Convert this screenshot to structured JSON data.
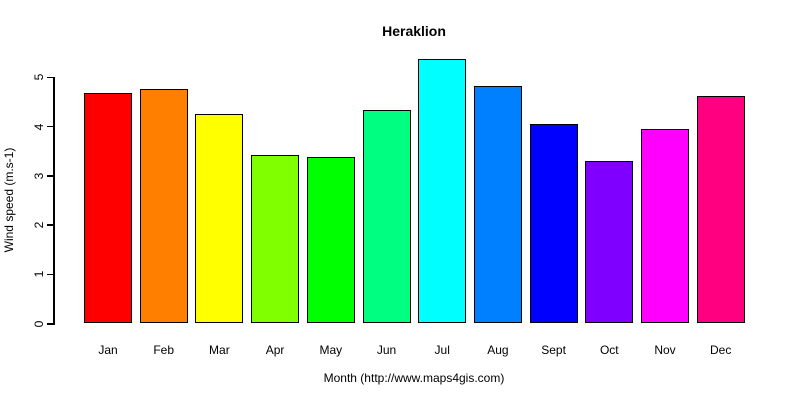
{
  "chart_data": {
    "type": "bar",
    "title": "Heraklion",
    "xlabel": "Month (http://www.maps4gis.com)",
    "ylabel": "Wind speed (m.s-1)",
    "categories": [
      "Jan",
      "Feb",
      "Mar",
      "Apr",
      "May",
      "Jun",
      "Jul",
      "Aug",
      "Sept",
      "Oct",
      "Nov",
      "Dec"
    ],
    "values": [
      4.67,
      4.74,
      4.24,
      3.41,
      3.36,
      4.32,
      5.35,
      4.81,
      4.04,
      3.28,
      3.93,
      4.61
    ],
    "bar_colors": [
      "#FF0000",
      "#FF8000",
      "#FFFF00",
      "#80FF00",
      "#00FF00",
      "#00FF80",
      "#00FFFF",
      "#0080FF",
      "#0000FF",
      "#8000FF",
      "#FF00FF",
      "#FF0080"
    ],
    "bar_border_color": "#000000",
    "y_ticks": [
      0,
      1,
      2,
      3,
      4,
      5
    ],
    "ylim": [
      0,
      5.45
    ],
    "grid": false,
    "legend_position": null,
    "text_color": "#000000",
    "background_color": "#FFFFFF"
  }
}
